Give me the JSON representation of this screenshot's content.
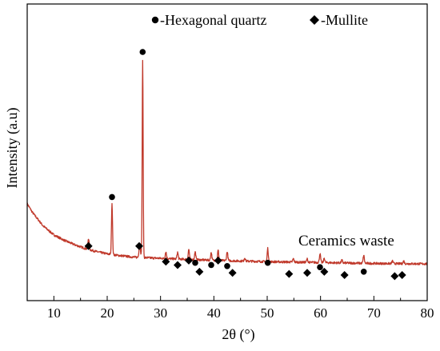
{
  "chart_data": {
    "type": "line",
    "xlabel": "2θ (°)",
    "ylabel": "Intensity (a.u)",
    "xlim": [
      5,
      80
    ],
    "ylim": [
      0,
      100
    ],
    "x_ticks": [
      10,
      20,
      30,
      40,
      50,
      60,
      70,
      80
    ],
    "y_ticks_shown": false,
    "annotation": "Ceramics waste",
    "series_color": "#c0392b",
    "legend": [
      {
        "marker": "circle",
        "label": "-Hexagonal quartz"
      },
      {
        "marker": "diamond",
        "label": "-Mullite"
      }
    ],
    "baseline": {
      "x": [
        5,
        6,
        7,
        8,
        9,
        10,
        12,
        14,
        16,
        18,
        20,
        22,
        24,
        25,
        30,
        35,
        40,
        50,
        60,
        70,
        80
      ],
      "y": [
        32,
        28,
        25,
        22,
        20,
        18,
        15.5,
        13.5,
        11.8,
        10.5,
        9.5,
        8.8,
        8.3,
        8.0,
        7.5,
        7.0,
        6.6,
        6.0,
        5.6,
        5.2,
        5.0
      ]
    },
    "peaks": [
      {
        "x": 16.5,
        "height": 5,
        "width": 0.25
      },
      {
        "x": 20.9,
        "height": 23,
        "width": 0.22
      },
      {
        "x": 26.1,
        "height": 6,
        "width": 0.3
      },
      {
        "x": 26.65,
        "height": 88,
        "width": 0.2
      },
      {
        "x": 31.0,
        "height": 3,
        "width": 0.25
      },
      {
        "x": 33.2,
        "height": 3,
        "width": 0.25
      },
      {
        "x": 35.3,
        "height": 4.5,
        "width": 0.25
      },
      {
        "x": 36.5,
        "height": 3.5,
        "width": 0.25
      },
      {
        "x": 39.5,
        "height": 3.5,
        "width": 0.25
      },
      {
        "x": 40.8,
        "height": 4.5,
        "width": 0.25
      },
      {
        "x": 42.5,
        "height": 4,
        "width": 0.25
      },
      {
        "x": 45.8,
        "height": 1.5,
        "width": 0.25
      },
      {
        "x": 50.1,
        "height": 6,
        "width": 0.22
      },
      {
        "x": 54.9,
        "height": 1.5,
        "width": 0.25
      },
      {
        "x": 57.5,
        "height": 1.5,
        "width": 0.25
      },
      {
        "x": 59.9,
        "height": 4,
        "width": 0.25
      },
      {
        "x": 60.7,
        "height": 2,
        "width": 0.25
      },
      {
        "x": 64.0,
        "height": 1.2,
        "width": 0.25
      },
      {
        "x": 68.1,
        "height": 3.5,
        "width": 0.25
      },
      {
        "x": 73.5,
        "height": 1.2,
        "width": 0.25
      },
      {
        "x": 75.6,
        "height": 1.2,
        "width": 0.25
      }
    ],
    "markers": [
      {
        "phase": "mullite",
        "x": 16.5,
        "y": 13
      },
      {
        "phase": "quartz",
        "x": 20.9,
        "y": 35
      },
      {
        "phase": "mullite",
        "x": 26.0,
        "y": 13
      },
      {
        "phase": "quartz",
        "x": 26.65,
        "y": 100
      },
      {
        "phase": "mullite",
        "x": 31.0,
        "y": 6
      },
      {
        "phase": "mullite",
        "x": 33.2,
        "y": 4.5
      },
      {
        "phase": "mullite",
        "x": 35.3,
        "y": 6.5
      },
      {
        "phase": "quartz",
        "x": 36.5,
        "y": 5.5
      },
      {
        "phase": "mullite",
        "x": 37.3,
        "y": 1.5
      },
      {
        "phase": "quartz",
        "x": 39.5,
        "y": 4.5
      },
      {
        "phase": "mullite",
        "x": 40.8,
        "y": 6.5
      },
      {
        "phase": "quartz",
        "x": 42.5,
        "y": 4
      },
      {
        "phase": "mullite",
        "x": 43.5,
        "y": 1
      },
      {
        "phase": "quartz",
        "x": 50.1,
        "y": 5.5
      },
      {
        "phase": "mullite",
        "x": 54.1,
        "y": 0.5
      },
      {
        "phase": "mullite",
        "x": 57.5,
        "y": 1
      },
      {
        "phase": "quartz",
        "x": 59.9,
        "y": 3.5
      },
      {
        "phase": "mullite",
        "x": 60.7,
        "y": 1.5
      },
      {
        "phase": "mullite",
        "x": 64.5,
        "y": 0
      },
      {
        "phase": "quartz",
        "x": 68.1,
        "y": 1.5
      },
      {
        "phase": "mullite",
        "x": 73.9,
        "y": -0.5
      },
      {
        "phase": "mullite",
        "x": 75.3,
        "y": 0
      }
    ]
  }
}
